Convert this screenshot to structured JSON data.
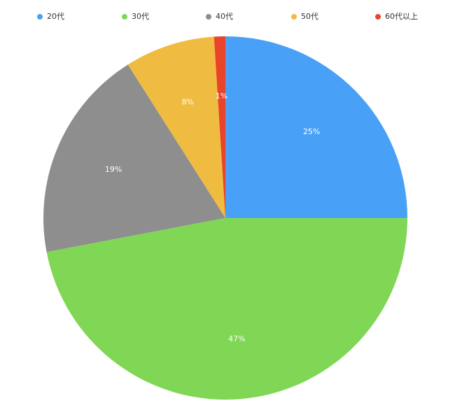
{
  "chart_data": {
    "type": "pie",
    "categories": [
      "20代",
      "30代",
      "40代",
      "50代",
      "60代以上"
    ],
    "values": [
      25,
      47,
      19,
      8,
      1
    ],
    "value_labels": [
      "25%",
      "47%",
      "19%",
      "8%",
      "1%"
    ],
    "colors": [
      "#48a0f7",
      "#80d655",
      "#8e8e8e",
      "#efbb40",
      "#e8442a"
    ],
    "legend": "top"
  }
}
